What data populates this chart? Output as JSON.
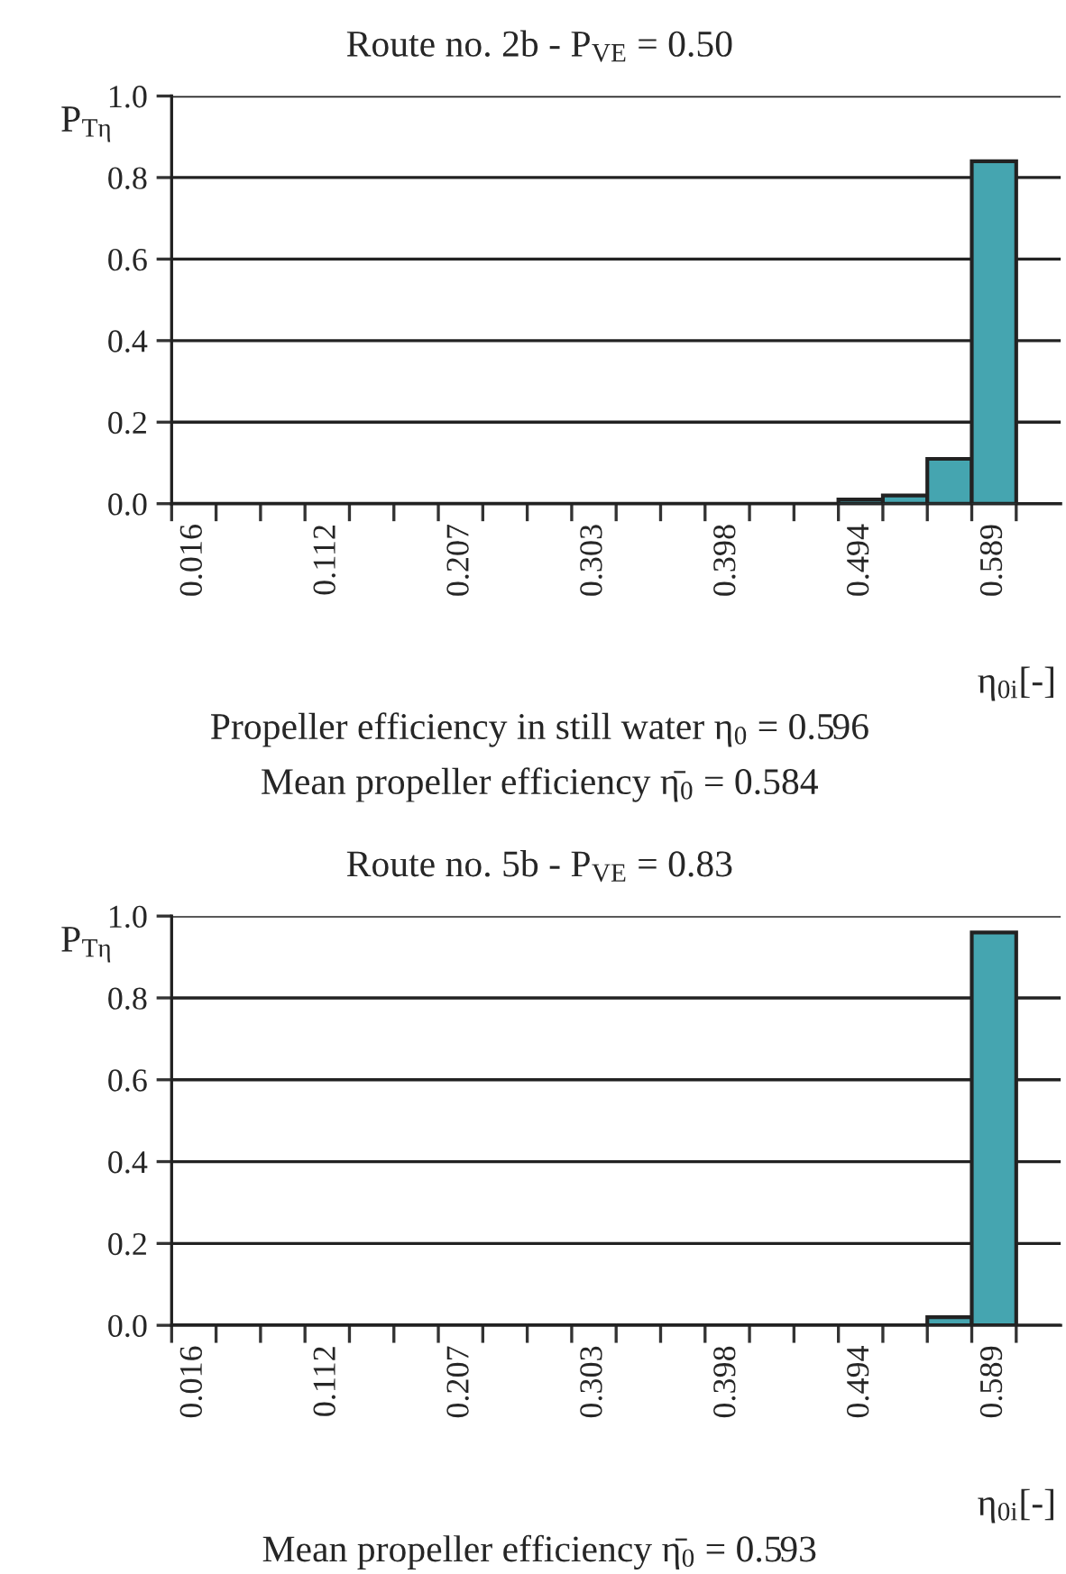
{
  "chart_data": [
    {
      "type": "bar",
      "title": "Route no. 2b - P$_{VE}$ = 0.50",
      "ylabel": "P$_{Tη}$",
      "xlabel": "η$_{0i}$[-]",
      "categories": [
        "0.016",
        null,
        null,
        "0.112",
        null,
        null,
        "0.207",
        null,
        null,
        "0.303",
        null,
        null,
        "0.398",
        null,
        null,
        "0.494",
        null,
        null,
        "0.589"
      ],
      "values": [
        0,
        0,
        0,
        0,
        0,
        0,
        0,
        0,
        0,
        0,
        0,
        0,
        0,
        0,
        0,
        0.01,
        0.02,
        0.11,
        0.84
      ],
      "color": "#45a5b0",
      "ylim": [
        0,
        1
      ],
      "yticks": [
        {
          "value": 0,
          "label": "0.0"
        },
        {
          "value": 0.2,
          "label": "0.2"
        },
        {
          "value": 0.4,
          "label": "0.4"
        },
        {
          "value": 0.6,
          "label": "0.6"
        },
        {
          "value": 0.8,
          "label": "0.8"
        },
        {
          "value": 1,
          "label": "1.0"
        }
      ],
      "grid": "y",
      "annotations": [
        "Propeller efficiency in still water η$_{0}$ = 0.596",
        "Mean propeller efficiency η̄$_{0}$ = 0.584"
      ]
    },
    {
      "type": "bar",
      "title": "Route no. 5b - P$_{VE}$ = 0.83",
      "ylabel": "P$_{Tη}$",
      "xlabel": "η$_{0i}$[-]",
      "categories": [
        "0.016",
        null,
        null,
        "0.112",
        null,
        null,
        "0.207",
        null,
        null,
        "0.303",
        null,
        null,
        "0.398",
        null,
        null,
        "0.494",
        null,
        null,
        "0.589"
      ],
      "values": [
        0,
        0,
        0,
        0,
        0,
        0,
        0,
        0,
        0,
        0,
        0,
        0,
        0,
        0,
        0,
        0,
        0,
        0.02,
        0.96
      ],
      "color": "#45a5b0",
      "ylim": [
        0,
        1
      ],
      "yticks": [
        {
          "value": 0,
          "label": "0.0"
        },
        {
          "value": 0.2,
          "label": "0.2"
        },
        {
          "value": 0.4,
          "label": "0.4"
        },
        {
          "value": 0.6,
          "label": "0.6"
        },
        {
          "value": 0.8,
          "label": "0.8"
        },
        {
          "value": 1,
          "label": "1.0"
        }
      ],
      "grid": "y",
      "annotations": [
        "Mean propeller efficiency η̄$_{0}$ = 0.593"
      ]
    }
  ]
}
